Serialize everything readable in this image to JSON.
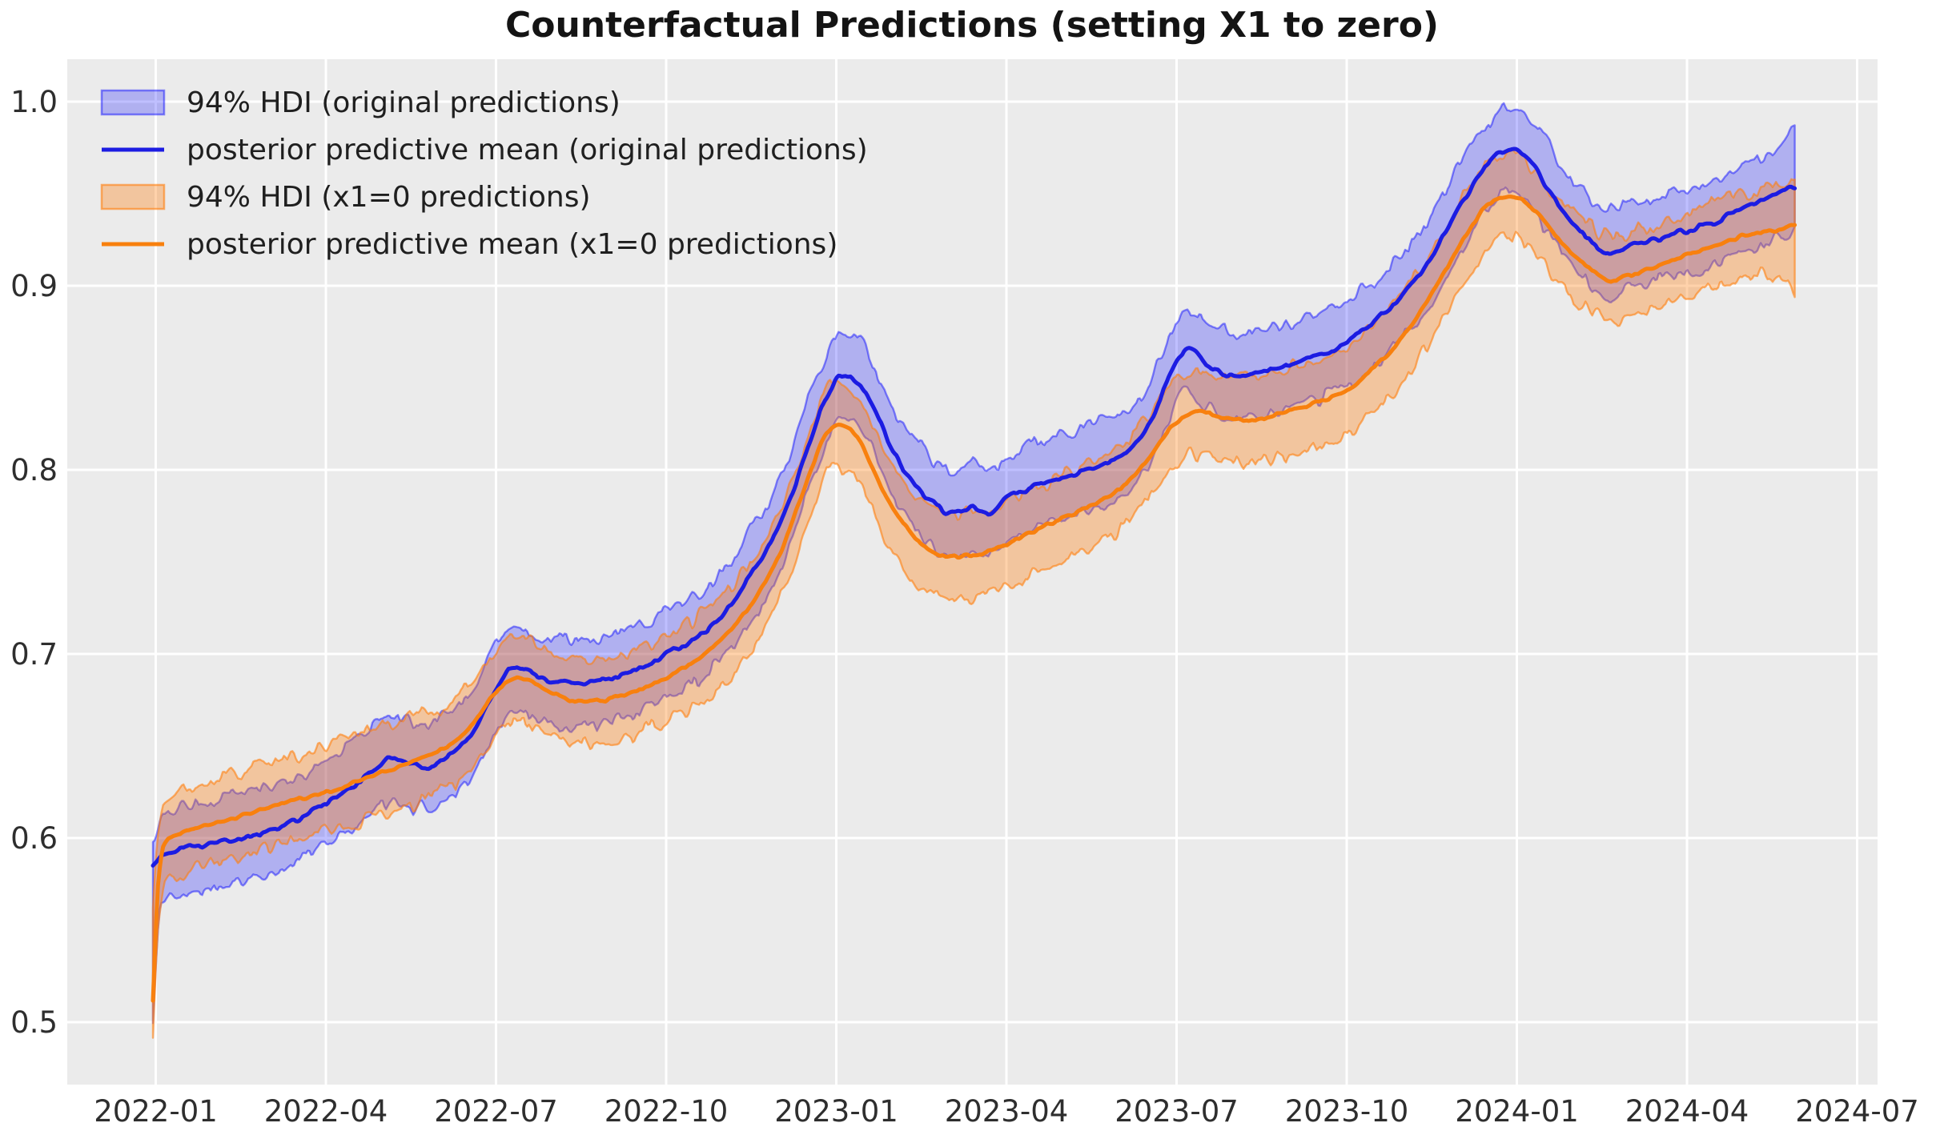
{
  "title": "Counterfactual Predictions (setting X1 to zero)",
  "legend": {
    "entries": [
      {
        "label": "94% HDI (original predictions)",
        "swatch": "patch",
        "series": 0
      },
      {
        "label": "posterior predictive mean (original predictions)",
        "swatch": "line",
        "series": 0
      },
      {
        "label": "94% HDI (x1=0 predictions)",
        "swatch": "patch",
        "series": 1
      },
      {
        "label": "posterior predictive mean (x1=0 predictions)",
        "swatch": "line",
        "series": 1
      }
    ]
  },
  "axes": {
    "x": {
      "tick_labels": [
        "2022-01",
        "2022-04",
        "2022-07",
        "2022-10",
        "2023-01",
        "2023-04",
        "2023-07",
        "2023-10",
        "2024-01",
        "2024-04",
        "2024-07"
      ],
      "tick_months": [
        0,
        3,
        6,
        9,
        12,
        15,
        18,
        21,
        24,
        27,
        30
      ]
    },
    "y": {
      "tick_labels": [
        "0.5",
        "0.6",
        "0.7",
        "0.8",
        "0.9",
        "1.0"
      ],
      "tick_values": [
        0.5,
        0.6,
        0.7,
        0.8,
        0.9,
        1.0
      ]
    }
  },
  "style": {
    "figure_bg": "#ffffff",
    "plot_bg": "#ebebeb",
    "grid": "#ffffff",
    "title_color": "#141414",
    "tick_color": "#2e2e2e"
  },
  "chart_data": {
    "type": "line",
    "title": "Counterfactual Predictions (setting X1 to zero)",
    "xlabel": "",
    "ylabel": "",
    "x_unit": "months since 2022-01",
    "x_range_months": [
      -0.05,
      28.9
    ],
    "ylim_ticks": [
      0.5,
      1.0
    ],
    "grid": true,
    "legend_position": "upper-left",
    "point_format": "[month, mean, hdi_low, hdi_high]",
    "series": [
      {
        "name": "posterior predictive mean (original predictions)",
        "band_name": "94% HDI (original predictions)",
        "line_color": "#1c1ce2",
        "band_fill": "rgba(0,0,255,0.25)",
        "band_edge": "rgba(0,0,255,0.45)",
        "points": [
          [
            -0.05,
            0.586,
            0.5,
            0.598
          ],
          [
            0.1,
            0.59,
            0.566,
            0.612
          ],
          [
            0.5,
            0.594,
            0.571,
            0.617
          ],
          [
            1,
            0.597,
            0.574,
            0.62
          ],
          [
            1.5,
            0.6,
            0.577,
            0.623
          ],
          [
            2,
            0.604,
            0.581,
            0.627
          ],
          [
            2.5,
            0.61,
            0.587,
            0.633
          ],
          [
            3,
            0.619,
            0.597,
            0.642
          ],
          [
            3.5,
            0.629,
            0.606,
            0.652
          ],
          [
            4.2,
            0.6435,
            0.62,
            0.666
          ],
          [
            4.8,
            0.638,
            0.615,
            0.661
          ],
          [
            5.2,
            0.645,
            0.622,
            0.668
          ],
          [
            5.6,
            0.658,
            0.634,
            0.681
          ],
          [
            6,
            0.681,
            0.657,
            0.704
          ],
          [
            6.3,
            0.6925,
            0.669,
            0.714
          ],
          [
            6.6,
            0.69,
            0.666,
            0.712
          ],
          [
            7,
            0.685,
            0.661,
            0.708
          ],
          [
            7.5,
            0.684,
            0.66,
            0.707
          ],
          [
            8,
            0.687,
            0.663,
            0.71
          ],
          [
            8.5,
            0.692,
            0.668,
            0.715
          ],
          [
            9,
            0.7,
            0.676,
            0.723
          ],
          [
            9.5,
            0.708,
            0.684,
            0.731
          ],
          [
            10,
            0.722,
            0.698,
            0.746
          ],
          [
            10.5,
            0.743,
            0.719,
            0.767
          ],
          [
            11,
            0.77,
            0.746,
            0.794
          ],
          [
            11.5,
            0.812,
            0.788,
            0.836
          ],
          [
            11.8,
            0.837,
            0.813,
            0.86
          ],
          [
            12.1,
            0.851,
            0.828,
            0.875
          ],
          [
            12.4,
            0.847,
            0.824,
            0.871
          ],
          [
            12.7,
            0.831,
            0.808,
            0.855
          ],
          [
            13,
            0.81,
            0.787,
            0.834
          ],
          [
            13.5,
            0.788,
            0.765,
            0.812
          ],
          [
            14,
            0.777,
            0.754,
            0.8
          ],
          [
            14.4,
            0.779,
            0.756,
            0.802
          ],
          [
            14.7,
            0.776,
            0.753,
            0.799
          ],
          [
            15,
            0.785,
            0.762,
            0.808
          ],
          [
            15.5,
            0.791,
            0.768,
            0.814
          ],
          [
            16,
            0.796,
            0.773,
            0.819
          ],
          [
            16.5,
            0.801,
            0.778,
            0.824
          ],
          [
            17,
            0.807,
            0.784,
            0.83
          ],
          [
            17.5,
            0.823,
            0.8,
            0.846
          ],
          [
            17.9,
            0.853,
            0.83,
            0.876
          ],
          [
            18.2,
            0.866,
            0.843,
            0.888
          ],
          [
            18.6,
            0.855,
            0.832,
            0.878
          ],
          [
            19,
            0.851,
            0.828,
            0.874
          ],
          [
            19.5,
            0.853,
            0.83,
            0.876
          ],
          [
            20,
            0.857,
            0.834,
            0.88
          ],
          [
            20.5,
            0.862,
            0.839,
            0.885
          ],
          [
            21,
            0.869,
            0.846,
            0.892
          ],
          [
            21.5,
            0.881,
            0.858,
            0.904
          ],
          [
            22,
            0.896,
            0.872,
            0.919
          ],
          [
            22.5,
            0.916,
            0.892,
            0.939
          ],
          [
            23,
            0.943,
            0.919,
            0.966
          ],
          [
            23.5,
            0.966,
            0.942,
            0.989
          ],
          [
            23.85,
            0.974,
            0.951,
            0.997
          ],
          [
            24.2,
            0.969,
            0.946,
            0.993
          ],
          [
            24.5,
            0.955,
            0.932,
            0.979
          ],
          [
            25,
            0.934,
            0.911,
            0.958
          ],
          [
            25.6,
            0.918,
            0.895,
            0.941
          ],
          [
            26,
            0.922,
            0.899,
            0.945
          ],
          [
            26.5,
            0.926,
            0.903,
            0.949
          ],
          [
            27,
            0.93,
            0.907,
            0.953
          ],
          [
            27.5,
            0.935,
            0.912,
            0.958
          ],
          [
            28,
            0.943,
            0.919,
            0.966
          ],
          [
            28.5,
            0.948,
            0.924,
            0.971
          ],
          [
            28.9,
            0.954,
            0.93,
            0.988
          ]
        ]
      },
      {
        "name": "posterior predictive mean (x1=0 predictions)",
        "band_name": "94% HDI (x1=0 predictions)",
        "line_color": "#f8800e",
        "band_fill": "rgba(255,127,14,0.35)",
        "band_edge": "rgba(255,127,14,0.6)",
        "points": [
          [
            -0.05,
            0.512,
            0.492,
            0.56
          ],
          [
            0.05,
            0.578,
            0.553,
            0.603
          ],
          [
            0.15,
            0.597,
            0.575,
            0.621
          ],
          [
            0.5,
            0.6035,
            0.581,
            0.627
          ],
          [
            1,
            0.608,
            0.586,
            0.632
          ],
          [
            1.5,
            0.612,
            0.59,
            0.636
          ],
          [
            2,
            0.617,
            0.594,
            0.641
          ],
          [
            2.5,
            0.621,
            0.598,
            0.645
          ],
          [
            3,
            0.625,
            0.603,
            0.649
          ],
          [
            3.5,
            0.63,
            0.608,
            0.654
          ],
          [
            4,
            0.636,
            0.613,
            0.66
          ],
          [
            4.5,
            0.641,
            0.618,
            0.665
          ],
          [
            5,
            0.647,
            0.624,
            0.671
          ],
          [
            5.5,
            0.659,
            0.636,
            0.682
          ],
          [
            6,
            0.679,
            0.656,
            0.702
          ],
          [
            6.4,
            0.687,
            0.664,
            0.71
          ],
          [
            6.8,
            0.682,
            0.659,
            0.705
          ],
          [
            7.3,
            0.675,
            0.652,
            0.698
          ],
          [
            7.8,
            0.6745,
            0.651,
            0.697
          ],
          [
            8.3,
            0.678,
            0.655,
            0.701
          ],
          [
            9,
            0.687,
            0.664,
            0.71
          ],
          [
            9.5,
            0.696,
            0.672,
            0.719
          ],
          [
            10,
            0.709,
            0.685,
            0.732
          ],
          [
            10.5,
            0.727,
            0.703,
            0.75
          ],
          [
            11,
            0.754,
            0.73,
            0.777
          ],
          [
            11.5,
            0.795,
            0.771,
            0.818
          ],
          [
            11.85,
            0.821,
            0.798,
            0.844
          ],
          [
            12.05,
            0.825,
            0.802,
            0.847
          ],
          [
            12.35,
            0.819,
            0.796,
            0.842
          ],
          [
            12.65,
            0.8,
            0.777,
            0.823
          ],
          [
            13,
            0.779,
            0.756,
            0.802
          ],
          [
            13.5,
            0.76,
            0.737,
            0.783
          ],
          [
            14,
            0.753,
            0.73,
            0.776
          ],
          [
            14.5,
            0.754,
            0.731,
            0.777
          ],
          [
            15,
            0.76,
            0.737,
            0.783
          ],
          [
            15.5,
            0.767,
            0.744,
            0.79
          ],
          [
            16,
            0.774,
            0.751,
            0.797
          ],
          [
            16.5,
            0.781,
            0.758,
            0.804
          ],
          [
            17,
            0.79,
            0.767,
            0.813
          ],
          [
            17.5,
            0.806,
            0.783,
            0.829
          ],
          [
            18,
            0.826,
            0.803,
            0.849
          ],
          [
            18.35,
            0.832,
            0.809,
            0.855
          ],
          [
            18.8,
            0.828,
            0.805,
            0.851
          ],
          [
            19.3,
            0.827,
            0.804,
            0.85
          ],
          [
            20,
            0.832,
            0.809,
            0.855
          ],
          [
            20.5,
            0.837,
            0.814,
            0.86
          ],
          [
            21,
            0.843,
            0.82,
            0.866
          ],
          [
            21.5,
            0.856,
            0.832,
            0.879
          ],
          [
            22,
            0.873,
            0.849,
            0.896
          ],
          [
            22.5,
            0.896,
            0.872,
            0.919
          ],
          [
            23,
            0.922,
            0.898,
            0.945
          ],
          [
            23.5,
            0.944,
            0.92,
            0.967
          ],
          [
            23.9,
            0.949,
            0.926,
            0.972
          ],
          [
            24.3,
            0.941,
            0.918,
            0.964
          ],
          [
            24.7,
            0.926,
            0.903,
            0.949
          ],
          [
            25.3,
            0.909,
            0.886,
            0.932
          ],
          [
            25.7,
            0.903,
            0.88,
            0.926
          ],
          [
            26,
            0.906,
            0.883,
            0.929
          ],
          [
            26.5,
            0.911,
            0.888,
            0.934
          ],
          [
            27,
            0.917,
            0.894,
            0.94
          ],
          [
            27.5,
            0.922,
            0.899,
            0.945
          ],
          [
            28,
            0.927,
            0.904,
            0.95
          ],
          [
            28.5,
            0.93,
            0.906,
            0.953
          ],
          [
            28.9,
            0.933,
            0.898,
            0.956
          ]
        ]
      }
    ]
  },
  "render": {
    "noise_seed": 7,
    "mean_noise_amp": [
      0.0012,
      0.0008
    ],
    "edge_noise_amp": 0.0035,
    "noise_scale_months": 0.12,
    "sample_step_months": 0.03
  }
}
